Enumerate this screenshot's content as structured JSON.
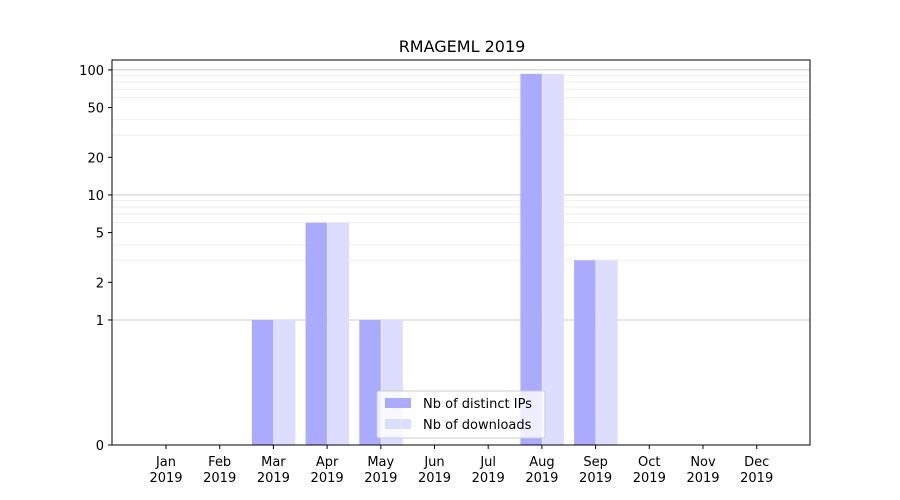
{
  "chart_data": {
    "type": "bar",
    "title": "RMAGEML 2019",
    "xlabel": "",
    "ylabel": "",
    "yscale": "symlog",
    "ylim": [
      0,
      120
    ],
    "y_ticks": [
      0,
      1,
      2,
      5,
      10,
      20,
      50,
      100
    ],
    "grid": "horizontal",
    "legend_position": "bottom-center",
    "categories": [
      [
        "Jan",
        "2019"
      ],
      [
        "Feb",
        "2019"
      ],
      [
        "Mar",
        "2019"
      ],
      [
        "Apr",
        "2019"
      ],
      [
        "May",
        "2019"
      ],
      [
        "Jun",
        "2019"
      ],
      [
        "Jul",
        "2019"
      ],
      [
        "Aug",
        "2019"
      ],
      [
        "Sep",
        "2019"
      ],
      [
        "Oct",
        "2019"
      ],
      [
        "Nov",
        "2019"
      ],
      [
        "Dec",
        "2019"
      ]
    ],
    "series": [
      {
        "name": "Nb of distinct IPs",
        "color": "#aaaaff",
        "values": [
          0,
          0,
          1,
          6,
          1,
          0,
          0,
          93,
          3,
          0,
          0,
          0
        ]
      },
      {
        "name": "Nb of downloads",
        "color": "#ddddff",
        "values": [
          0,
          0,
          1,
          6,
          1,
          0,
          0,
          93,
          3,
          0,
          0,
          0
        ]
      }
    ]
  }
}
